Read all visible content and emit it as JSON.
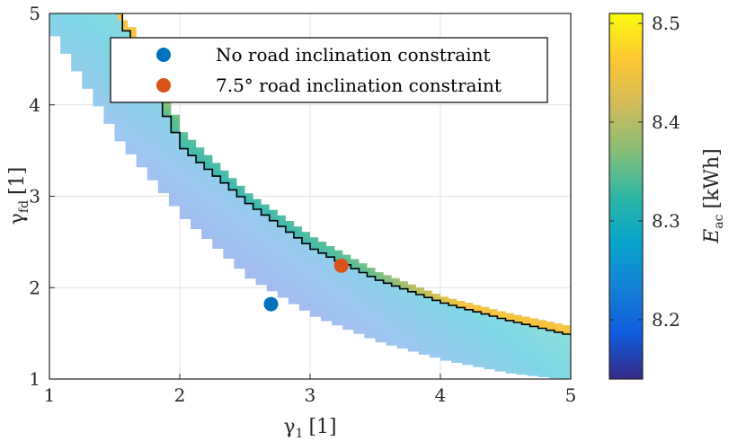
{
  "chart_data": {
    "type": "heatmap",
    "title": "",
    "xlabel": "γ",
    "xlabel_sub": "1",
    "xlabel_unit": "[1]",
    "ylabel": "γ",
    "ylabel_sub": "fd",
    "ylabel_unit": "[1]",
    "xlim": [
      1,
      5
    ],
    "ylim": [
      1,
      5
    ],
    "xticks": [
      1,
      2,
      3,
      4,
      5
    ],
    "yticks": [
      1,
      2,
      3,
      4,
      5
    ],
    "xtick_labels": [
      "1",
      "2",
      "3",
      "4",
      "5"
    ],
    "ytick_labels": [
      "1",
      "2",
      "3",
      "4",
      "5"
    ],
    "grid": true,
    "colorbar": {
      "label": "E",
      "label_sub": "ac",
      "label_unit": "[kWh]",
      "range": [
        8.14,
        8.51
      ],
      "ticks": [
        8.2,
        8.3,
        8.4,
        8.5
      ],
      "tick_labels": [
        "8.2",
        "8.3",
        "8.4",
        "8.5"
      ],
      "colormap": "parula",
      "colors": [
        "#352a87",
        "#0f5cdd",
        "#1481d6",
        "#06a4ca",
        "#2eb7a4",
        "#87bf77",
        "#d1bb59",
        "#fec832",
        "#f9fb0e"
      ]
    },
    "feasible_region": {
      "lower_boundary": {
        "x": [
          1.0,
          1.5,
          2.0,
          2.5,
          3.0,
          3.5,
          4.0,
          4.5,
          5.0
        ],
        "y": [
          4.75,
          3.6,
          2.75,
          2.1,
          1.68,
          1.4,
          1.2,
          1.06,
          0.98
        ]
      },
      "upper_boundary": {
        "x": [
          1.0,
          1.45,
          1.6,
          2.0,
          2.5,
          3.0,
          3.5,
          4.0,
          4.5,
          5.0
        ],
        "y": [
          5.0,
          5.0,
          4.85,
          3.7,
          3.03,
          2.55,
          2.17,
          1.9,
          1.72,
          1.57
        ]
      },
      "fill_low_color": "#b4b6f2",
      "fill_mid_color": "#8cd6ee"
    },
    "constraint_line": {
      "label": "7.5° road inclination constraint boundary",
      "x": [
        1.5,
        1.8,
        2.0,
        2.5,
        3.0,
        3.5,
        4.0,
        4.5,
        5.0
      ],
      "y": [
        5.0,
        4.05,
        3.52,
        2.92,
        2.42,
        2.08,
        1.83,
        1.64,
        1.47
      ],
      "color": "#000000"
    },
    "series": [
      {
        "name": "No road inclination constraint",
        "x": [
          2.7
        ],
        "y": [
          1.82
        ],
        "color": "#0072bd"
      },
      {
        "name": "7.5° road inclination constraint",
        "x": [
          3.24
        ],
        "y": [
          2.24
        ],
        "color": "#d95319"
      }
    ],
    "legend": {
      "placement": "top-right"
    }
  }
}
